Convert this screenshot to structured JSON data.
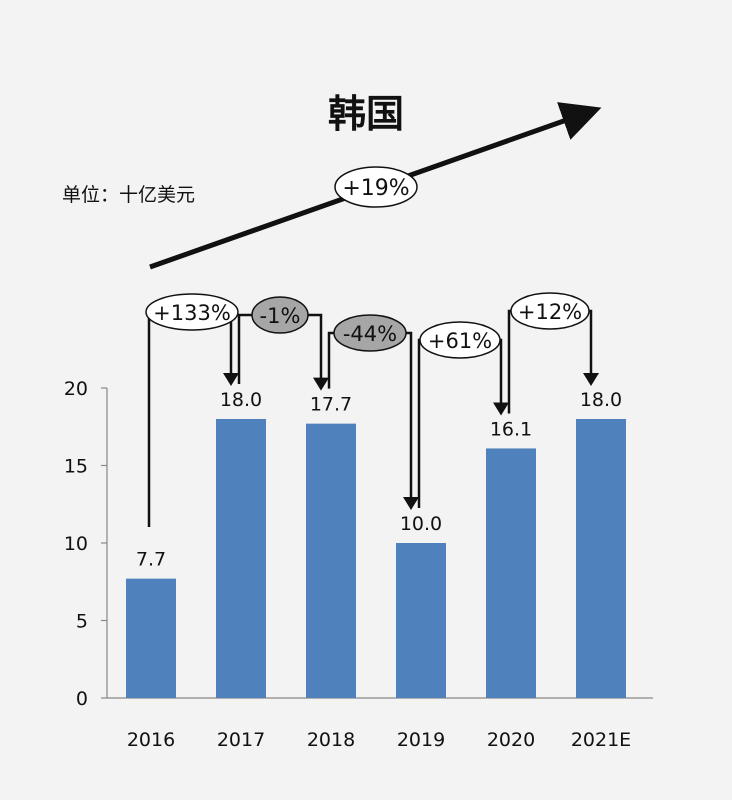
{
  "chart_data": {
    "type": "bar",
    "title": "韩国",
    "unit_label": "单位：十亿美元",
    "categories": [
      "2016",
      "2017",
      "2018",
      "2019",
      "2020",
      "2021E"
    ],
    "values": [
      7.7,
      18.0,
      17.7,
      10.0,
      16.1,
      18.0
    ],
    "data_labels": [
      "7.7",
      "18.0",
      "17.7",
      "10.0",
      "16.1",
      "18.0"
    ],
    "ylim": [
      0,
      20
    ],
    "yticks": [
      "0",
      "5",
      "10",
      "15",
      "20"
    ],
    "bar_color": "#4f81bd",
    "growth_labels": [
      "+133%",
      "-1%",
      "-44%",
      "+61%",
      "+12%"
    ],
    "growth_negative": [
      false,
      true,
      true,
      false,
      false
    ],
    "negative_fill": "#a6a6a6",
    "cagr_label": "+19%",
    "grid": false
  }
}
